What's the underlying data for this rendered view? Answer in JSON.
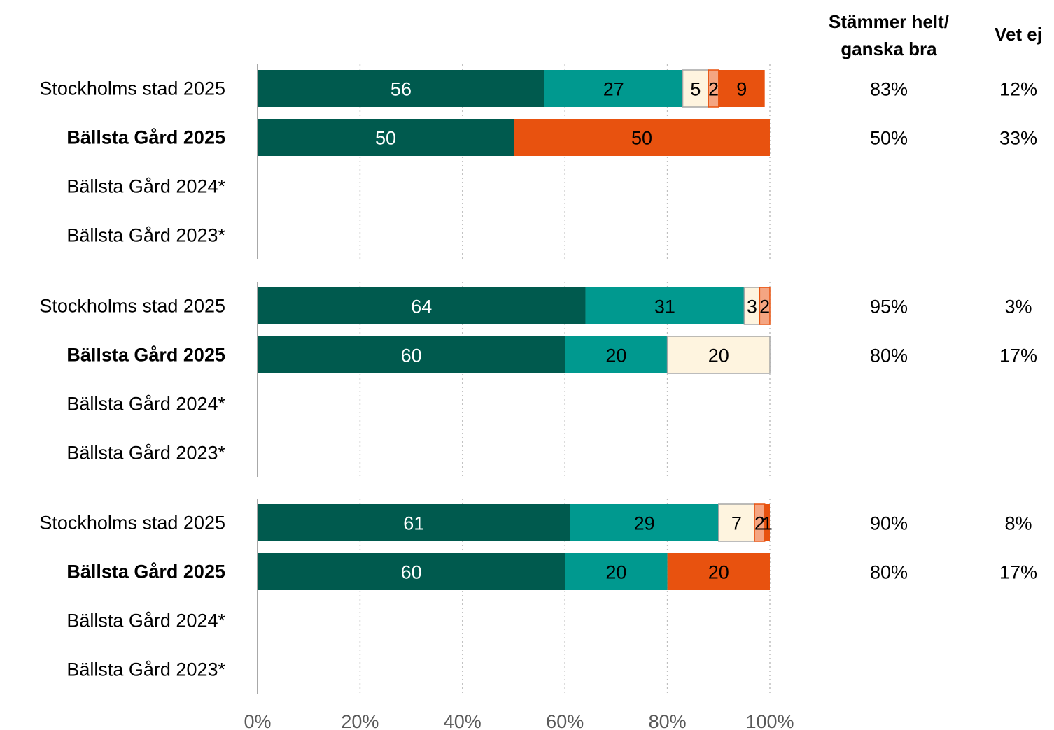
{
  "chart_data": {
    "type": "bar",
    "orientation": "horizontal",
    "stacked": true,
    "xlim": [
      0,
      100
    ],
    "x_ticks": [
      "0%",
      "20%",
      "40%",
      "60%",
      "80%",
      "100%"
    ],
    "grid": "vertical dotted",
    "side_columns": {
      "headers": [
        [
          "Stämmer helt/",
          "ganska bra"
        ],
        [
          "Vet ej"
        ]
      ]
    },
    "series_colors": [
      "#005A4E",
      "#00998F",
      "#FEF4DF",
      "#F4A582",
      "#E8520F"
    ],
    "groups": [
      {
        "rows": [
          {
            "label": "Stockholms stad 2025",
            "bold": false,
            "values": [
              56,
              27,
              5,
              2,
              9
            ],
            "agree": "83%",
            "dont_know": "12%"
          },
          {
            "label": "Bällsta Gård 2025",
            "bold": true,
            "values": [
              50,
              0,
              0,
              0,
              50
            ],
            "agree": "50%",
            "dont_know": "33%"
          },
          {
            "label": "Bällsta Gård 2024*",
            "bold": false,
            "values": [],
            "agree": "",
            "dont_know": ""
          },
          {
            "label": "Bällsta Gård 2023*",
            "bold": false,
            "values": [],
            "agree": "",
            "dont_know": ""
          }
        ]
      },
      {
        "rows": [
          {
            "label": "Stockholms stad 2025",
            "bold": false,
            "values": [
              64,
              31,
              3,
              2,
              0
            ],
            "agree": "95%",
            "dont_know": "3%"
          },
          {
            "label": "Bällsta Gård 2025",
            "bold": true,
            "values": [
              60,
              20,
              20,
              0,
              0
            ],
            "agree": "80%",
            "dont_know": "17%"
          },
          {
            "label": "Bällsta Gård 2024*",
            "bold": false,
            "values": [],
            "agree": "",
            "dont_know": ""
          },
          {
            "label": "Bällsta Gård 2023*",
            "bold": false,
            "values": [],
            "agree": "",
            "dont_know": ""
          }
        ]
      },
      {
        "rows": [
          {
            "label": "Stockholms stad 2025",
            "bold": false,
            "values": [
              61,
              29,
              7,
              2,
              1
            ],
            "agree": "90%",
            "dont_know": "8%"
          },
          {
            "label": "Bällsta Gård 2025",
            "bold": true,
            "values": [
              60,
              20,
              0,
              0,
              20
            ],
            "agree": "80%",
            "dont_know": "17%"
          },
          {
            "label": "Bällsta Gård 2024*",
            "bold": false,
            "values": [],
            "agree": "",
            "dont_know": ""
          },
          {
            "label": "Bällsta Gård 2023*",
            "bold": false,
            "values": [],
            "agree": "",
            "dont_know": ""
          }
        ]
      }
    ]
  }
}
